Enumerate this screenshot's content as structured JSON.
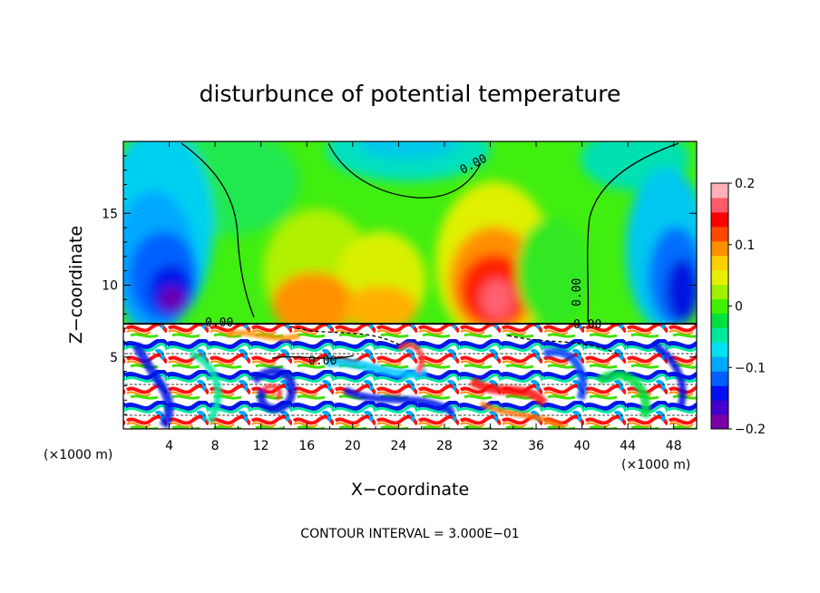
{
  "chart_data": {
    "type": "heatmap",
    "title": "disturbunce of potential temperature",
    "xlabel": "X−coordinate",
    "ylabel": "Z−coordinate",
    "x_unit_left": "(×1000 m)",
    "x_unit_right": "(×1000 m)",
    "footnote": "CONTOUR INTERVAL = 3.000E−01",
    "xlim": [
      0,
      50
    ],
    "ylim": [
      0,
      20
    ],
    "x_ticks": [
      4,
      8,
      12,
      16,
      20,
      24,
      28,
      32,
      36,
      40,
      44,
      48
    ],
    "y_ticks": [
      5,
      10,
      15
    ],
    "colorbar": {
      "range": [
        -0.2,
        0.2
      ],
      "tick_values": [
        0.2,
        0.1,
        0,
        -0.1,
        -0.2
      ],
      "tick_labels": [
        "0.2",
        "0.1",
        "0",
        "−0.1",
        "−0.2"
      ],
      "colors": [
        "#7a00a8",
        "#4400cc",
        "#0010f0",
        "#0060ff",
        "#00a8ff",
        "#00e0f0",
        "#00e8a0",
        "#00e040",
        "#40f000",
        "#a0f000",
        "#e8f000",
        "#ffd000",
        "#ff9000",
        "#ff4800",
        "#ff0000",
        "#ff5a6a",
        "#ffb0b8"
      ]
    },
    "contour_label": "0.00",
    "contour_interval": 0.3,
    "features": [
      {
        "kind": "cold_core",
        "x": 4.5,
        "z": 10,
        "value": -0.2
      },
      {
        "kind": "warm_core",
        "x": 32,
        "z": 10.5,
        "value": 0.18
      },
      {
        "kind": "warm_core",
        "x": 20,
        "z": 10,
        "value": 0.1
      },
      {
        "kind": "cold_region",
        "x": 47,
        "z": 11,
        "value": -0.15
      },
      {
        "kind": "mixed_layer_top",
        "z": 7.5
      }
    ],
    "grid": false
  }
}
